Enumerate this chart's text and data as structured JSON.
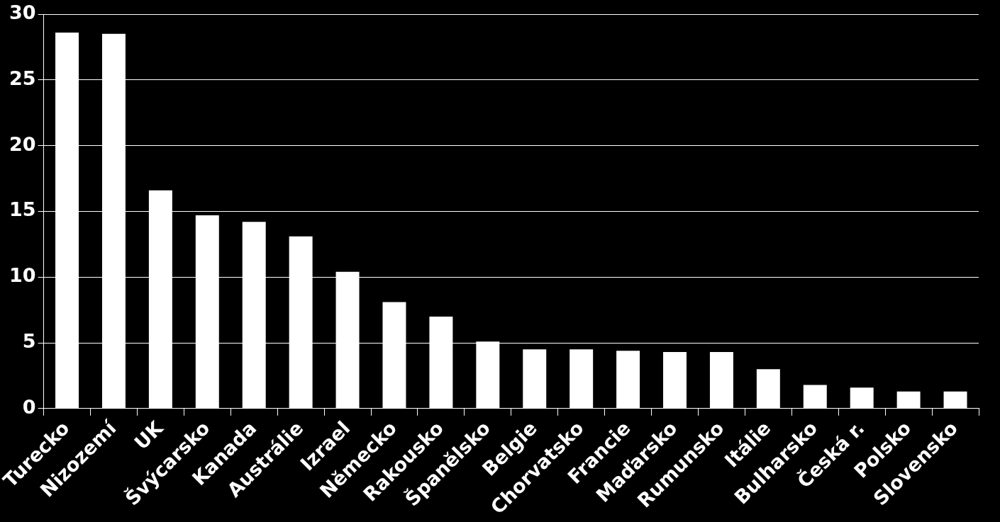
{
  "chart_data": {
    "type": "bar",
    "categories": [
      "Turecko",
      "Nizozemí",
      "UK",
      "Švýcarsko",
      "Kanada",
      "Austrálie",
      "Izrael",
      "Německo",
      "Rakousko",
      "Španělsko",
      "Belgie",
      "Chorvatsko",
      "Francie",
      "Maďarsko",
      "Rumunsko",
      "Itálie",
      "Bulharsko",
      "Česká r.",
      "Polsko",
      "Slovensko"
    ],
    "values": [
      28.6,
      28.5,
      16.6,
      14.7,
      14.2,
      13.1,
      10.4,
      8.1,
      7.0,
      5.1,
      4.5,
      4.5,
      4.4,
      4.3,
      4.3,
      3.0,
      1.8,
      1.6,
      1.3,
      1.3
    ],
    "color": "#ffffff",
    "ylim": [
      0,
      30
    ],
    "yticks": [
      0,
      5,
      10,
      15,
      20,
      25,
      30
    ],
    "grid": "y",
    "legend": false
  }
}
